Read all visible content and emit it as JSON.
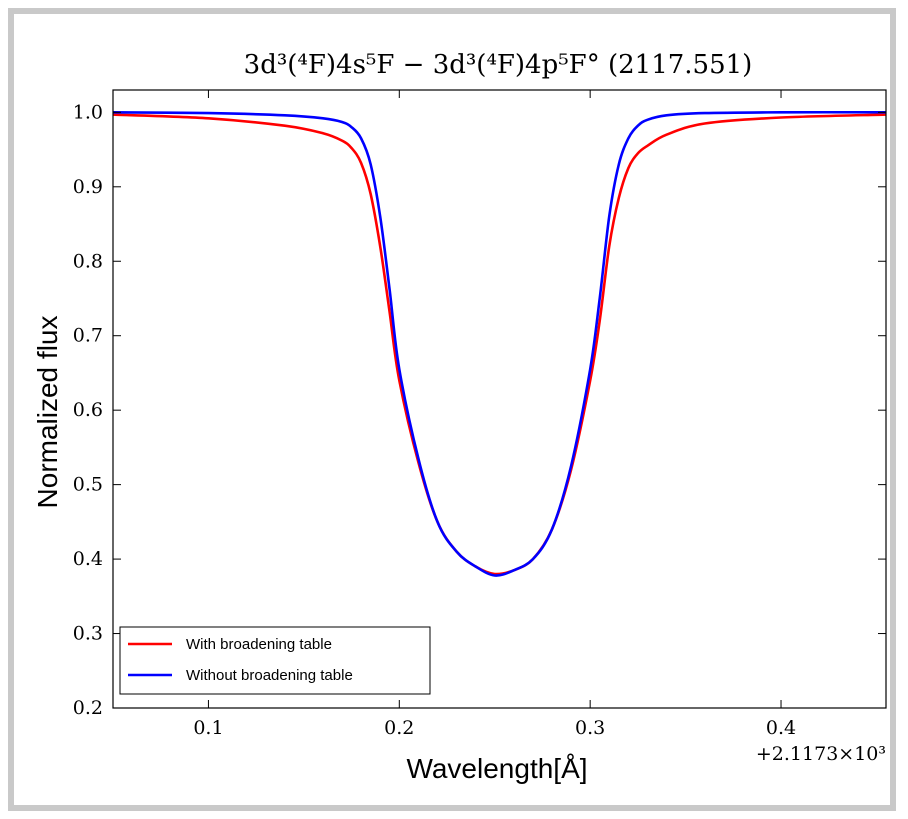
{
  "chart_data": {
    "type": "line",
    "title": "3d³(⁴F)4s⁵F − 3d³(⁴F)4p⁵F° (2117.551)",
    "xlabel": "Wavelength[Å]",
    "ylabel": "Normalized flux",
    "x_offset_label": "+2.1173×10³",
    "xlim": [
      0.05,
      0.455
    ],
    "ylim": [
      0.2,
      1.03
    ],
    "x_ticks": [
      0.1,
      0.2,
      0.3,
      0.4
    ],
    "x_tick_labels": [
      "0.1",
      "0.2",
      "0.3",
      "0.4"
    ],
    "y_ticks": [
      0.2,
      0.3,
      0.4,
      0.5,
      0.6,
      0.7,
      0.8,
      0.9,
      1.0
    ],
    "y_tick_labels": [
      "0.2",
      "0.3",
      "0.4",
      "0.5",
      "0.6",
      "0.7",
      "0.8",
      "0.9",
      "1.0"
    ],
    "grid": false,
    "legend_position": "lower-left",
    "x": [
      0.05,
      0.1,
      0.14,
      0.16,
      0.17,
      0.175,
      0.18,
      0.185,
      0.19,
      0.195,
      0.2,
      0.21,
      0.22,
      0.23,
      0.24,
      0.25,
      0.26,
      0.27,
      0.28,
      0.29,
      0.3,
      0.305,
      0.31,
      0.315,
      0.32,
      0.325,
      0.33,
      0.34,
      0.36,
      0.4,
      0.455
    ],
    "series": [
      {
        "name": "With broadening table",
        "color": "#ff0000",
        "values": [
          0.997,
          0.992,
          0.982,
          0.972,
          0.962,
          0.952,
          0.932,
          0.89,
          0.82,
          0.73,
          0.64,
          0.53,
          0.45,
          0.41,
          0.39,
          0.38,
          0.385,
          0.4,
          0.44,
          0.52,
          0.64,
          0.72,
          0.82,
          0.885,
          0.925,
          0.945,
          0.955,
          0.97,
          0.985,
          0.993,
          0.997
        ]
      },
      {
        "name": "Without broadening table",
        "color": "#0000ff",
        "values": [
          1.0,
          0.999,
          0.996,
          0.992,
          0.987,
          0.98,
          0.965,
          0.93,
          0.86,
          0.76,
          0.655,
          0.535,
          0.45,
          0.41,
          0.39,
          0.378,
          0.385,
          0.4,
          0.44,
          0.525,
          0.655,
          0.75,
          0.86,
          0.93,
          0.965,
          0.982,
          0.99,
          0.996,
          0.999,
          1.0,
          1.0
        ]
      }
    ]
  }
}
